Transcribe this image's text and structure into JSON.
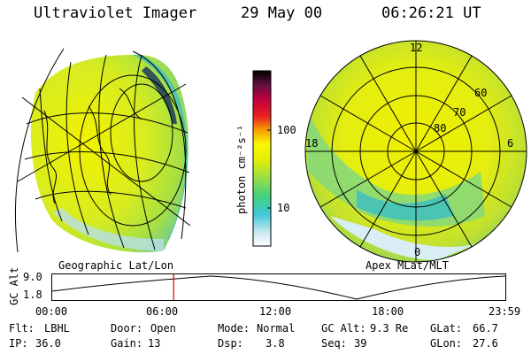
{
  "header": {
    "instrument": "Ultraviolet Imager",
    "date": "29 May 00",
    "time": "06:26:21 UT"
  },
  "colorbar": {
    "unit_label": "photon cm⁻²s⁻¹",
    "ticks": [
      "100",
      "10"
    ]
  },
  "left_panel": {
    "label": "Geographic Lat/Lon"
  },
  "right_panel": {
    "label": "Apex MLat/MLT",
    "mlt_labels": [
      "12",
      "18",
      "6",
      "0"
    ],
    "mlat_labels": [
      "60",
      "70",
      "80"
    ]
  },
  "timeline": {
    "axis_label": "GC Alt",
    "y_ticks": [
      "9.0",
      "1.8"
    ],
    "x_ticks": [
      "00:00",
      "06:00",
      "12:00",
      "18:00",
      "23:59"
    ],
    "current_time_fraction": 0.268,
    "marker_color": "#d40000"
  },
  "status": {
    "filter_label": "Flt:",
    "filter_value": "LBHL",
    "ip_label": "IP:",
    "ip_value": "36.0",
    "door_label": "Door:",
    "door_value": "Open",
    "gain_label": "Gain:",
    "gain_value": "13",
    "mode_label": "Mode:",
    "mode_value": "Normal",
    "dsp_label": "Dsp:",
    "dsp_value": "3.8",
    "gcalt_label": "GC Alt:",
    "gcalt_value": "9.3 Re",
    "seq_label": "Seq:",
    "seq_value": "39",
    "glat_label": "GLat:",
    "glat_value": "66.7",
    "glon_label": "GLon:",
    "glon_value": "27.6"
  }
}
